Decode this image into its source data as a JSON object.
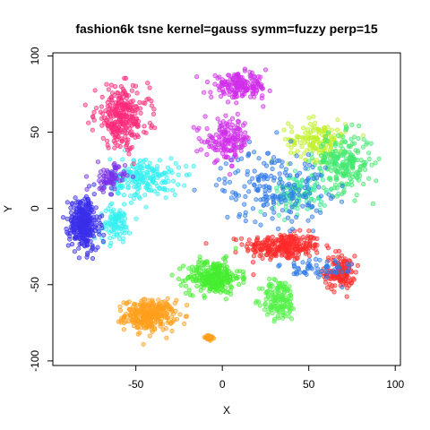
{
  "chart_data": {
    "type": "scatter",
    "title": "fashion6k tsne kernel=gauss symm=fuzzy perp=15",
    "xlabel": "X",
    "ylabel": "Y",
    "xlim": [
      -98,
      103
    ],
    "ylim": [
      -103,
      102
    ],
    "xticks": [
      -50,
      0,
      50,
      100
    ],
    "yticks": [
      -100,
      -50,
      0,
      50,
      100
    ],
    "grid": false,
    "legend": "none",
    "clusters": [
      {
        "color": "#FF2A2A",
        "center": [
          35,
          -25
        ],
        "spread": [
          20,
          8
        ],
        "count": 260
      },
      {
        "color": "#FF2A2A",
        "center": [
          68,
          -42
        ],
        "spread": [
          8,
          10
        ],
        "count": 140
      },
      {
        "color": "#FF9F1C",
        "center": [
          -42,
          -70
        ],
        "spread": [
          13,
          9
        ],
        "count": 300
      },
      {
        "color": "#FF9F1C",
        "center": [
          -8,
          -85
        ],
        "spread": [
          4,
          2
        ],
        "count": 20
      },
      {
        "color": "#44EE2E",
        "center": [
          -5,
          -45
        ],
        "spread": [
          14,
          10
        ],
        "count": 260
      },
      {
        "color": "#55F24A",
        "center": [
          33,
          -60
        ],
        "spread": [
          9,
          12
        ],
        "count": 150
      },
      {
        "color": "#C0F02A",
        "center": [
          55,
          45
        ],
        "spread": [
          15,
          12
        ],
        "count": 150
      },
      {
        "color": "#44E870",
        "center": [
          70,
          30
        ],
        "spread": [
          15,
          17
        ],
        "count": 220
      },
      {
        "color": "#3FEA9A",
        "center": [
          45,
          10
        ],
        "spread": [
          14,
          12
        ],
        "count": 120
      },
      {
        "color": "#2F7BE8",
        "center": [
          30,
          15
        ],
        "spread": [
          28,
          22
        ],
        "count": 200
      },
      {
        "color": "#2F7BE8",
        "center": [
          55,
          -40
        ],
        "spread": [
          20,
          8
        ],
        "count": 60
      },
      {
        "color": "#33F0F0",
        "center": [
          -45,
          20
        ],
        "spread": [
          18,
          12
        ],
        "count": 190
      },
      {
        "color": "#33F0F0",
        "center": [
          -62,
          -10
        ],
        "spread": [
          8,
          10
        ],
        "count": 90
      },
      {
        "color": "#3A2EEA",
        "center": [
          -80,
          -10
        ],
        "spread": [
          8,
          16
        ],
        "count": 300
      },
      {
        "color": "#7A32E8",
        "center": [
          -65,
          20
        ],
        "spread": [
          8,
          8
        ],
        "count": 80
      },
      {
        "color": "#FF2A7A",
        "center": [
          -58,
          60
        ],
        "spread": [
          14,
          18
        ],
        "count": 280
      },
      {
        "color": "#D02EEA",
        "center": [
          10,
          80
        ],
        "spread": [
          15,
          7
        ],
        "count": 180
      },
      {
        "color": "#D02EEA",
        "center": [
          3,
          45
        ],
        "spread": [
          12,
          12
        ],
        "count": 160
      }
    ]
  }
}
